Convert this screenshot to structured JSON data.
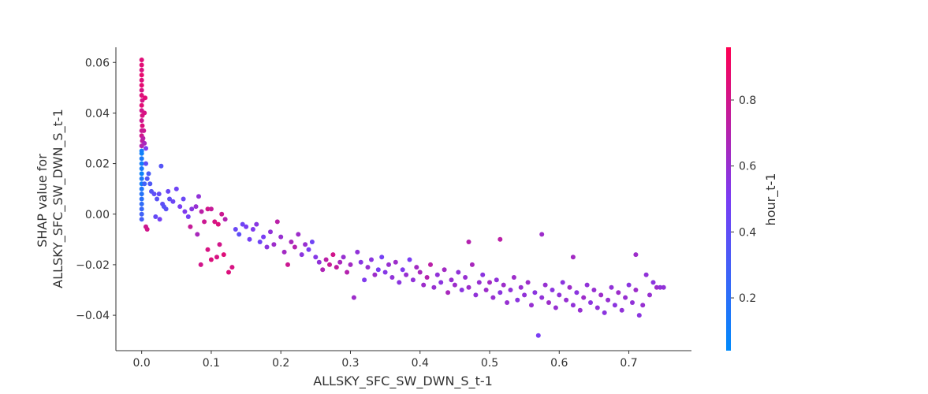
{
  "chart_data": {
    "type": "scatter",
    "title": "",
    "xlabel": "ALLSKY_SFC_SW_DWN_S_t-1",
    "ylabel_lines": [
      "SHAP value for",
      "ALLSKY_SFC_SW_DWN_S_t-1"
    ],
    "xlim": [
      -0.037,
      0.79
    ],
    "ylim": [
      -0.054,
      0.066
    ],
    "xticks": [
      0.0,
      0.1,
      0.2,
      0.3,
      0.4,
      0.5,
      0.6,
      0.7
    ],
    "xtick_labels": [
      "0.0",
      "0.1",
      "0.2",
      "0.3",
      "0.4",
      "0.5",
      "0.6",
      "0.7"
    ],
    "yticks": [
      -0.04,
      -0.02,
      0.0,
      0.02,
      0.04,
      0.06
    ],
    "ytick_labels": [
      "−0.04",
      "−0.02",
      "0.00",
      "0.02",
      "0.04",
      "0.06"
    ],
    "grid": false,
    "colorbar": {
      "label": "hour_t-1",
      "range": [
        0.04,
        0.96
      ],
      "ticks": [
        0.2,
        0.4,
        0.6,
        0.8
      ],
      "tick_labels": [
        "0.2",
        "0.4",
        "0.6",
        "0.8"
      ],
      "colors": [
        "#008afb",
        "#7a3df4",
        "#ff0052"
      ]
    },
    "points": [
      [
        0.0,
        0.061,
        0.85
      ],
      [
        0.0,
        0.059,
        0.86
      ],
      [
        0.0,
        0.057,
        0.83
      ],
      [
        0.0,
        0.055,
        0.88
      ],
      [
        0.0,
        0.053,
        0.84
      ],
      [
        0.0,
        0.051,
        0.87
      ],
      [
        0.0,
        0.049,
        0.82
      ],
      [
        0.0,
        0.047,
        0.85
      ],
      [
        0.001,
        0.045,
        0.81
      ],
      [
        0.0,
        0.043,
        0.86
      ],
      [
        0.0,
        0.041,
        0.8
      ],
      [
        0.001,
        0.039,
        0.83
      ],
      [
        0.0,
        0.037,
        0.79
      ],
      [
        0.001,
        0.035,
        0.84
      ],
      [
        0.0,
        0.033,
        0.78
      ],
      [
        0.0,
        0.031,
        0.8
      ],
      [
        0.001,
        0.029,
        0.74
      ],
      [
        0.0,
        0.027,
        0.7
      ],
      [
        0.0,
        0.025,
        0.12
      ],
      [
        0.0,
        0.024,
        0.1
      ],
      [
        0.0,
        0.022,
        0.14
      ],
      [
        0.0,
        0.02,
        0.11
      ],
      [
        0.0,
        0.018,
        0.13
      ],
      [
        0.0,
        0.016,
        0.09
      ],
      [
        0.0,
        0.014,
        0.15
      ],
      [
        0.0,
        0.012,
        0.12
      ],
      [
        0.0,
        0.01,
        0.16
      ],
      [
        0.0,
        0.008,
        0.18
      ],
      [
        0.0,
        0.006,
        0.2
      ],
      [
        0.0,
        0.004,
        0.22
      ],
      [
        0.0,
        0.002,
        0.25
      ],
      [
        0.0,
        0.0,
        0.28
      ],
      [
        0.0,
        -0.002,
        0.3
      ],
      [
        0.002,
        0.03,
        0.72
      ],
      [
        0.004,
        0.028,
        0.66
      ],
      [
        0.003,
        0.033,
        0.78
      ],
      [
        0.005,
        0.046,
        0.86
      ],
      [
        0.004,
        0.04,
        0.82
      ],
      [
        0.006,
        0.026,
        0.5
      ],
      [
        0.006,
        0.02,
        0.4
      ],
      [
        0.008,
        0.014,
        0.35
      ],
      [
        0.01,
        0.016,
        0.32
      ],
      [
        0.004,
        0.012,
        0.28
      ],
      [
        0.012,
        0.012,
        0.34
      ],
      [
        0.006,
        -0.005,
        0.78
      ],
      [
        0.008,
        -0.006,
        0.8
      ],
      [
        0.014,
        0.009,
        0.36
      ],
      [
        0.018,
        0.008,
        0.4
      ],
      [
        0.022,
        0.006,
        0.38
      ],
      [
        0.025,
        0.008,
        0.42
      ],
      [
        0.028,
        0.019,
        0.36
      ],
      [
        0.03,
        0.004,
        0.4
      ],
      [
        0.035,
        0.002,
        0.38
      ],
      [
        0.038,
        0.009,
        0.44
      ],
      [
        0.04,
        0.006,
        0.4
      ],
      [
        0.045,
        0.005,
        0.45
      ],
      [
        0.02,
        -0.001,
        0.42
      ],
      [
        0.026,
        -0.002,
        0.48
      ],
      [
        0.032,
        0.003,
        0.37
      ],
      [
        0.05,
        0.01,
        0.46
      ],
      [
        0.055,
        0.003,
        0.5
      ],
      [
        0.06,
        0.006,
        0.44
      ],
      [
        0.062,
        0.001,
        0.52
      ],
      [
        0.067,
        -0.001,
        0.48
      ],
      [
        0.072,
        0.002,
        0.55
      ],
      [
        0.078,
        0.003,
        0.6
      ],
      [
        0.082,
        0.007,
        0.58
      ],
      [
        0.086,
        0.001,
        0.72
      ],
      [
        0.09,
        -0.003,
        0.78
      ],
      [
        0.095,
        0.002,
        0.8
      ],
      [
        0.1,
        0.002,
        0.76
      ],
      [
        0.105,
        -0.003,
        0.82
      ],
      [
        0.11,
        -0.004,
        0.84
      ],
      [
        0.115,
        0.0,
        0.78
      ],
      [
        0.12,
        -0.002,
        0.7
      ],
      [
        0.07,
        -0.005,
        0.76
      ],
      [
        0.08,
        -0.008,
        0.66
      ],
      [
        0.085,
        -0.02,
        0.8
      ],
      [
        0.095,
        -0.014,
        0.82
      ],
      [
        0.1,
        -0.018,
        0.84
      ],
      [
        0.108,
        -0.017,
        0.82
      ],
      [
        0.112,
        -0.012,
        0.8
      ],
      [
        0.118,
        -0.016,
        0.85
      ],
      [
        0.125,
        -0.023,
        0.84
      ],
      [
        0.13,
        -0.021,
        0.82
      ],
      [
        0.135,
        -0.006,
        0.44
      ],
      [
        0.14,
        -0.008,
        0.4
      ],
      [
        0.145,
        -0.004,
        0.46
      ],
      [
        0.15,
        -0.005,
        0.5
      ],
      [
        0.155,
        -0.01,
        0.48
      ],
      [
        0.16,
        -0.006,
        0.52
      ],
      [
        0.165,
        -0.004,
        0.55
      ],
      [
        0.17,
        -0.011,
        0.46
      ],
      [
        0.175,
        -0.009,
        0.5
      ],
      [
        0.18,
        -0.013,
        0.56
      ],
      [
        0.185,
        -0.007,
        0.58
      ],
      [
        0.19,
        -0.012,
        0.62
      ],
      [
        0.195,
        -0.003,
        0.72
      ],
      [
        0.2,
        -0.009,
        0.6
      ],
      [
        0.205,
        -0.015,
        0.64
      ],
      [
        0.21,
        -0.02,
        0.78
      ],
      [
        0.215,
        -0.011,
        0.66
      ],
      [
        0.22,
        -0.013,
        0.7
      ],
      [
        0.225,
        -0.008,
        0.62
      ],
      [
        0.23,
        -0.016,
        0.56
      ],
      [
        0.235,
        -0.012,
        0.6
      ],
      [
        0.24,
        -0.014,
        0.5
      ],
      [
        0.245,
        -0.011,
        0.46
      ],
      [
        0.25,
        -0.017,
        0.54
      ],
      [
        0.255,
        -0.019,
        0.58
      ],
      [
        0.26,
        -0.022,
        0.68
      ],
      [
        0.265,
        -0.018,
        0.72
      ],
      [
        0.27,
        -0.02,
        0.76
      ],
      [
        0.275,
        -0.016,
        0.8
      ],
      [
        0.28,
        -0.021,
        0.74
      ],
      [
        0.285,
        -0.019,
        0.66
      ],
      [
        0.29,
        -0.017,
        0.6
      ],
      [
        0.295,
        -0.023,
        0.7
      ],
      [
        0.3,
        -0.02,
        0.64
      ],
      [
        0.305,
        -0.033,
        0.62
      ],
      [
        0.31,
        -0.015,
        0.58
      ],
      [
        0.315,
        -0.019,
        0.55
      ],
      [
        0.32,
        -0.026,
        0.52
      ],
      [
        0.325,
        -0.021,
        0.6
      ],
      [
        0.33,
        -0.018,
        0.56
      ],
      [
        0.335,
        -0.024,
        0.62
      ],
      [
        0.34,
        -0.022,
        0.5
      ],
      [
        0.345,
        -0.017,
        0.48
      ],
      [
        0.35,
        -0.023,
        0.54
      ],
      [
        0.355,
        -0.02,
        0.6
      ],
      [
        0.36,
        -0.025,
        0.58
      ],
      [
        0.365,
        -0.019,
        0.62
      ],
      [
        0.37,
        -0.027,
        0.56
      ],
      [
        0.375,
        -0.022,
        0.52
      ],
      [
        0.38,
        -0.024,
        0.6
      ],
      [
        0.385,
        -0.018,
        0.5
      ],
      [
        0.39,
        -0.026,
        0.58
      ],
      [
        0.395,
        -0.021,
        0.64
      ],
      [
        0.4,
        -0.023,
        0.66
      ],
      [
        0.405,
        -0.028,
        0.62
      ],
      [
        0.41,
        -0.025,
        0.7
      ],
      [
        0.415,
        -0.02,
        0.72
      ],
      [
        0.42,
        -0.029,
        0.6
      ],
      [
        0.425,
        -0.024,
        0.58
      ],
      [
        0.43,
        -0.027,
        0.56
      ],
      [
        0.435,
        -0.022,
        0.64
      ],
      [
        0.44,
        -0.031,
        0.66
      ],
      [
        0.445,
        -0.026,
        0.6
      ],
      [
        0.45,
        -0.028,
        0.62
      ],
      [
        0.455,
        -0.023,
        0.58
      ],
      [
        0.46,
        -0.03,
        0.56
      ],
      [
        0.465,
        -0.025,
        0.6
      ],
      [
        0.47,
        -0.029,
        0.62
      ],
      [
        0.475,
        -0.02,
        0.66
      ],
      [
        0.48,
        -0.032,
        0.58
      ],
      [
        0.485,
        -0.027,
        0.6
      ],
      [
        0.49,
        -0.024,
        0.56
      ],
      [
        0.495,
        -0.03,
        0.62
      ],
      [
        0.5,
        -0.027,
        0.64
      ],
      [
        0.505,
        -0.033,
        0.6
      ],
      [
        0.51,
        -0.026,
        0.58
      ],
      [
        0.515,
        -0.031,
        0.56
      ],
      [
        0.52,
        -0.028,
        0.62
      ],
      [
        0.525,
        -0.035,
        0.6
      ],
      [
        0.53,
        -0.03,
        0.58
      ],
      [
        0.535,
        -0.025,
        0.62
      ],
      [
        0.54,
        -0.034,
        0.56
      ],
      [
        0.545,
        -0.029,
        0.6
      ],
      [
        0.55,
        -0.032,
        0.58
      ],
      [
        0.555,
        -0.027,
        0.62
      ],
      [
        0.56,
        -0.036,
        0.6
      ],
      [
        0.565,
        -0.031,
        0.56
      ],
      [
        0.57,
        -0.048,
        0.5
      ],
      [
        0.575,
        -0.033,
        0.58
      ],
      [
        0.58,
        -0.028,
        0.6
      ],
      [
        0.585,
        -0.035,
        0.62
      ],
      [
        0.59,
        -0.03,
        0.56
      ],
      [
        0.595,
        -0.037,
        0.6
      ],
      [
        0.6,
        -0.032,
        0.58
      ],
      [
        0.605,
        -0.027,
        0.56
      ],
      [
        0.61,
        -0.034,
        0.6
      ],
      [
        0.615,
        -0.029,
        0.62
      ],
      [
        0.62,
        -0.036,
        0.58
      ],
      [
        0.625,
        -0.031,
        0.56
      ],
      [
        0.63,
        -0.038,
        0.6
      ],
      [
        0.635,
        -0.033,
        0.62
      ],
      [
        0.64,
        -0.028,
        0.58
      ],
      [
        0.645,
        -0.035,
        0.56
      ],
      [
        0.65,
        -0.03,
        0.6
      ],
      [
        0.655,
        -0.037,
        0.58
      ],
      [
        0.66,
        -0.032,
        0.62
      ],
      [
        0.665,
        -0.039,
        0.56
      ],
      [
        0.67,
        -0.034,
        0.6
      ],
      [
        0.675,
        -0.029,
        0.58
      ],
      [
        0.68,
        -0.036,
        0.56
      ],
      [
        0.685,
        -0.031,
        0.62
      ],
      [
        0.69,
        -0.038,
        0.58
      ],
      [
        0.695,
        -0.033,
        0.6
      ],
      [
        0.7,
        -0.028,
        0.56
      ],
      [
        0.705,
        -0.035,
        0.58
      ],
      [
        0.71,
        -0.03,
        0.62
      ],
      [
        0.715,
        -0.04,
        0.56
      ],
      [
        0.72,
        -0.036,
        0.6
      ],
      [
        0.725,
        -0.024,
        0.58
      ],
      [
        0.73,
        -0.032,
        0.6
      ],
      [
        0.735,
        -0.027,
        0.56
      ],
      [
        0.74,
        -0.029,
        0.62
      ],
      [
        0.745,
        -0.029,
        0.58
      ],
      [
        0.515,
        -0.01,
        0.72
      ],
      [
        0.47,
        -0.011,
        0.7
      ],
      [
        0.575,
        -0.008,
        0.62
      ],
      [
        0.62,
        -0.017,
        0.64
      ],
      [
        0.71,
        -0.016,
        0.62
      ],
      [
        0.75,
        -0.029,
        0.58
      ]
    ]
  }
}
